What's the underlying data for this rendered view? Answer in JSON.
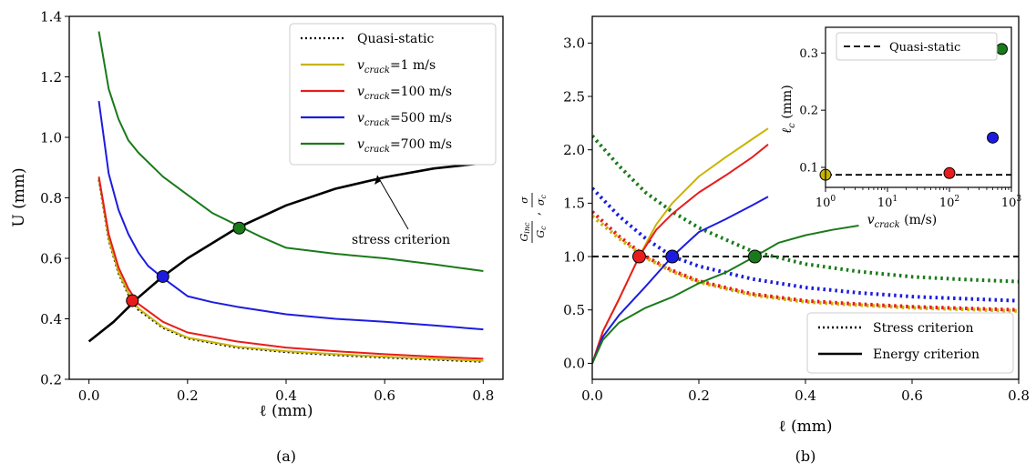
{
  "chart_data": [
    {
      "id": "a",
      "type": "line",
      "caption": "(a)",
      "xlabel": "ℓ (mm)",
      "ylabel": "U (mm)",
      "xlim": [
        -0.04,
        0.84
      ],
      "ylim": [
        0.2,
        1.4
      ],
      "xticks": [
        "0.0",
        "0.2",
        "0.4",
        "0.6",
        "0.8"
      ],
      "yticks": [
        "0.2",
        "0.4",
        "0.6",
        "0.8",
        "1.0",
        "1.2",
        "1.4"
      ],
      "grid": false,
      "legend_position": "top-right",
      "annotation": "stress criterion",
      "series": [
        {
          "name": "Quasi-static",
          "color": "#000000",
          "dash": "dotted",
          "x": [
            0.02,
            0.04,
            0.06,
            0.08,
            0.1,
            0.15,
            0.2,
            0.3,
            0.4,
            0.5,
            0.6,
            0.7,
            0.8
          ],
          "y": [
            0.86,
            0.66,
            0.55,
            0.48,
            0.43,
            0.37,
            0.335,
            0.305,
            0.29,
            0.28,
            0.272,
            0.265,
            0.258
          ]
        },
        {
          "name": "v_crack=1 m/s",
          "color": "#c9b400",
          "dash": "solid",
          "x": [
            0.02,
            0.04,
            0.06,
            0.08,
            0.1,
            0.15,
            0.2,
            0.3,
            0.4,
            0.5,
            0.6,
            0.7,
            0.8
          ],
          "y": [
            0.865,
            0.665,
            0.555,
            0.485,
            0.435,
            0.373,
            0.338,
            0.308,
            0.293,
            0.283,
            0.275,
            0.268,
            0.261
          ]
        },
        {
          "name": "v_crack=100 m/s",
          "color": "#e81c1c",
          "dash": "solid",
          "x": [
            0.02,
            0.04,
            0.06,
            0.08,
            0.1,
            0.15,
            0.2,
            0.3,
            0.4,
            0.5,
            0.6,
            0.7,
            0.8
          ],
          "y": [
            0.87,
            0.68,
            0.57,
            0.5,
            0.45,
            0.39,
            0.355,
            0.325,
            0.305,
            0.293,
            0.283,
            0.275,
            0.268
          ]
        },
        {
          "name": "v_crack=500 m/s",
          "color": "#1c1ce0",
          "dash": "solid",
          "x": [
            0.02,
            0.04,
            0.06,
            0.08,
            0.1,
            0.12,
            0.15,
            0.2,
            0.25,
            0.3,
            0.4,
            0.5,
            0.6,
            0.7,
            0.8
          ],
          "y": [
            1.12,
            0.88,
            0.76,
            0.68,
            0.62,
            0.575,
            0.535,
            0.475,
            0.455,
            0.44,
            0.415,
            0.4,
            0.39,
            0.378,
            0.365
          ]
        },
        {
          "name": "v_crack=700 m/s",
          "color": "#1a7a1a",
          "dash": "solid",
          "x": [
            0.02,
            0.04,
            0.06,
            0.08,
            0.1,
            0.15,
            0.2,
            0.25,
            0.3,
            0.35,
            0.4,
            0.5,
            0.6,
            0.7,
            0.8
          ],
          "y": [
            1.35,
            1.16,
            1.06,
            0.99,
            0.95,
            0.87,
            0.81,
            0.75,
            0.71,
            0.67,
            0.635,
            0.615,
            0.6,
            0.58,
            0.558
          ]
        },
        {
          "name": "",
          "color": "#000000",
          "dash": "solid",
          "width": 2.6,
          "x": [
            0.0,
            0.05,
            0.1,
            0.15,
            0.2,
            0.3,
            0.4,
            0.5,
            0.6,
            0.7,
            0.8
          ],
          "y": [
            0.325,
            0.39,
            0.47,
            0.54,
            0.6,
            0.7,
            0.775,
            0.83,
            0.868,
            0.897,
            0.915
          ]
        }
      ],
      "markers": [
        {
          "x": 0.088,
          "y": 0.46,
          "color": "#e81c1c"
        },
        {
          "x": 0.15,
          "y": 0.54,
          "color": "#1c1ce0"
        },
        {
          "x": 0.305,
          "y": 0.7,
          "color": "#1a7a1a"
        }
      ]
    },
    {
      "id": "b",
      "type": "line",
      "caption": "(b)",
      "xlabel": "ℓ (mm)",
      "ylabel": "G_inc/G_c, σ/σ_c",
      "xlim": [
        0.0,
        0.8
      ],
      "ylim": [
        -0.15,
        3.25
      ],
      "xticks": [
        "0.0",
        "0.2",
        "0.4",
        "0.6",
        "0.8"
      ],
      "yticks": [
        "0.0",
        "0.5",
        "1.0",
        "1.5",
        "2.0",
        "2.5",
        "3.0"
      ],
      "grid": false,
      "legend_position": "bottom-right",
      "legend": [
        {
          "label": "Stress criterion",
          "dash": "dotted"
        },
        {
          "label": "Energy criterion",
          "dash": "solid"
        }
      ],
      "reference_line": {
        "y": 1.0,
        "dash": "dashed",
        "color": "#000000"
      },
      "series": [
        {
          "name": "",
          "color": "#c9b400",
          "dash": "dotted",
          "x": [
            0.0,
            0.05,
            0.1,
            0.15,
            0.2,
            0.3,
            0.4,
            0.5,
            0.6,
            0.7,
            0.8
          ],
          "y": [
            1.38,
            1.17,
            0.99,
            0.86,
            0.76,
            0.64,
            0.575,
            0.545,
            0.52,
            0.505,
            0.49
          ]
        },
        {
          "name": "",
          "color": "#e81c1c",
          "dash": "dotted",
          "x": [
            0.0,
            0.05,
            0.1,
            0.15,
            0.2,
            0.3,
            0.4,
            0.5,
            0.6,
            0.7,
            0.8
          ],
          "y": [
            1.42,
            1.19,
            1.0,
            0.87,
            0.77,
            0.65,
            0.585,
            0.555,
            0.53,
            0.515,
            0.5
          ]
        },
        {
          "name": "",
          "color": "#1c1ce0",
          "dash": "dotted",
          "x": [
            0.0,
            0.05,
            0.1,
            0.15,
            0.2,
            0.3,
            0.4,
            0.5,
            0.6,
            0.7,
            0.8
          ],
          "y": [
            1.64,
            1.38,
            1.17,
            1.0,
            0.91,
            0.79,
            0.71,
            0.66,
            0.625,
            0.605,
            0.585
          ]
        },
        {
          "name": "",
          "color": "#1a7a1a",
          "dash": "dotted",
          "x": [
            0.0,
            0.05,
            0.1,
            0.15,
            0.2,
            0.3,
            0.4,
            0.5,
            0.6,
            0.7,
            0.8
          ],
          "y": [
            2.13,
            1.85,
            1.6,
            1.42,
            1.27,
            1.05,
            0.93,
            0.86,
            0.81,
            0.785,
            0.765
          ]
        },
        {
          "name": "",
          "color": "#c9b400",
          "dash": "solid",
          "x": [
            0.0,
            0.02,
            0.05,
            0.088,
            0.12,
            0.15,
            0.2,
            0.25,
            0.3,
            0.33
          ],
          "y": [
            0.0,
            0.3,
            0.6,
            1.0,
            1.3,
            1.5,
            1.75,
            1.93,
            2.1,
            2.2
          ]
        },
        {
          "name": "",
          "color": "#e81c1c",
          "dash": "solid",
          "x": [
            0.0,
            0.02,
            0.05,
            0.088,
            0.12,
            0.15,
            0.2,
            0.25,
            0.3,
            0.33
          ],
          "y": [
            0.0,
            0.3,
            0.6,
            1.0,
            1.25,
            1.4,
            1.6,
            1.76,
            1.93,
            2.05
          ]
        },
        {
          "name": "",
          "color": "#1c1ce0",
          "dash": "solid",
          "x": [
            0.0,
            0.02,
            0.05,
            0.1,
            0.15,
            0.2,
            0.25,
            0.3,
            0.33
          ],
          "y": [
            0.0,
            0.25,
            0.45,
            0.72,
            1.0,
            1.23,
            1.35,
            1.48,
            1.56
          ]
        },
        {
          "name": "",
          "color": "#1a7a1a",
          "dash": "solid",
          "x": [
            0.0,
            0.02,
            0.05,
            0.1,
            0.15,
            0.2,
            0.25,
            0.305,
            0.35,
            0.4,
            0.45,
            0.5
          ],
          "y": [
            0.0,
            0.22,
            0.38,
            0.52,
            0.62,
            0.75,
            0.85,
            1.0,
            1.13,
            1.2,
            1.25,
            1.29
          ]
        }
      ],
      "markers": [
        {
          "x": 0.088,
          "y": 1.0,
          "color": "#e81c1c"
        },
        {
          "x": 0.15,
          "y": 1.0,
          "color": "#1c1ce0"
        },
        {
          "x": 0.305,
          "y": 1.0,
          "color": "#1a7a1a"
        }
      ]
    },
    {
      "id": "b-inset",
      "type": "scatter",
      "xlabel": "v_crack (m/s)",
      "ylabel": "ℓ_c (mm)",
      "xscale": "log",
      "xlim": [
        1,
        1000
      ],
      "ylim": [
        0.065,
        0.345
      ],
      "xticks": [
        "10",
        "10",
        "10",
        "10"
      ],
      "xtick_exponents": [
        "0",
        "1",
        "2",
        "3"
      ],
      "yticks": [
        "0.1",
        "0.2",
        "0.3"
      ],
      "legend": [
        {
          "label": "Quasi-static",
          "dash": "dashed"
        }
      ],
      "reference_line": {
        "y": 0.087,
        "dash": "dashed",
        "color": "#000000"
      },
      "points": [
        {
          "x": 1,
          "y": 0.087,
          "color": "#c9b400"
        },
        {
          "x": 100,
          "y": 0.09,
          "color": "#e81c1c"
        },
        {
          "x": 500,
          "y": 0.152,
          "color": "#1c1ce0"
        },
        {
          "x": 700,
          "y": 0.307,
          "color": "#1a7a1a"
        }
      ]
    }
  ]
}
